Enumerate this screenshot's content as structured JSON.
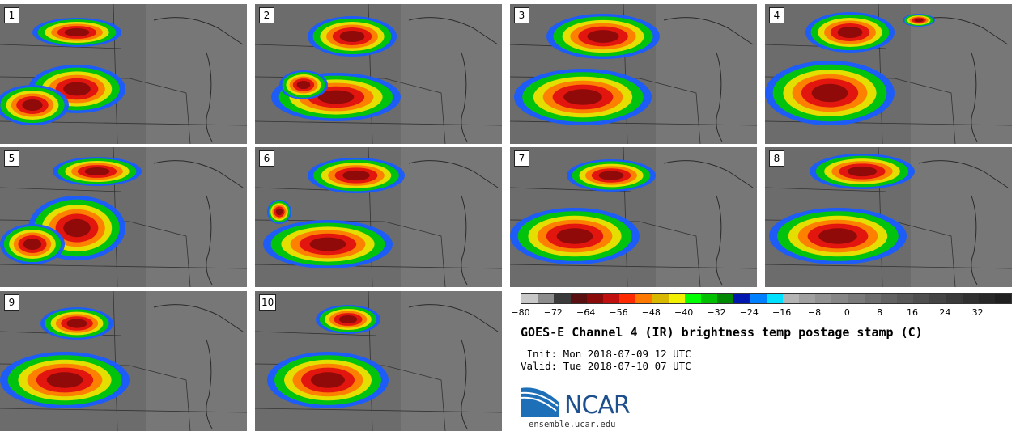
{
  "panels": [
    {
      "label": "1",
      "storms": [
        {
          "cx": 95,
          "cy": 35,
          "rx": 55,
          "ry": 18
        },
        {
          "cx": 95,
          "cy": 105,
          "rx": 60,
          "ry": 30
        },
        {
          "cx": 40,
          "cy": 125,
          "rx": 45,
          "ry": 25
        }
      ]
    },
    {
      "label": "2",
      "storms": [
        {
          "cx": 120,
          "cy": 40,
          "rx": 55,
          "ry": 25
        },
        {
          "cx": 100,
          "cy": 115,
          "rx": 80,
          "ry": 30
        },
        {
          "cx": 60,
          "cy": 100,
          "rx": 30,
          "ry": 18
        }
      ]
    },
    {
      "label": "3",
      "storms": [
        {
          "cx": 115,
          "cy": 40,
          "rx": 70,
          "ry": 28
        },
        {
          "cx": 90,
          "cy": 115,
          "rx": 85,
          "ry": 35
        }
      ]
    },
    {
      "label": "4",
      "storms": [
        {
          "cx": 105,
          "cy": 35,
          "rx": 55,
          "ry": 25
        },
        {
          "cx": 80,
          "cy": 110,
          "rx": 80,
          "ry": 40
        },
        {
          "cx": 190,
          "cy": 20,
          "rx": 20,
          "ry": 8
        }
      ]
    },
    {
      "label": "5",
      "storms": [
        {
          "cx": 120,
          "cy": 30,
          "rx": 55,
          "ry": 18
        },
        {
          "cx": 95,
          "cy": 100,
          "rx": 60,
          "ry": 40
        },
        {
          "cx": 40,
          "cy": 120,
          "rx": 40,
          "ry": 25
        }
      ]
    },
    {
      "label": "6",
      "storms": [
        {
          "cx": 125,
          "cy": 35,
          "rx": 60,
          "ry": 22
        },
        {
          "cx": 90,
          "cy": 120,
          "rx": 80,
          "ry": 30
        },
        {
          "cx": 30,
          "cy": 80,
          "rx": 15,
          "ry": 15
        }
      ]
    },
    {
      "label": "7",
      "storms": [
        {
          "cx": 125,
          "cy": 35,
          "rx": 55,
          "ry": 20
        },
        {
          "cx": 80,
          "cy": 110,
          "rx": 80,
          "ry": 35
        }
      ]
    },
    {
      "label": "8",
      "storms": [
        {
          "cx": 120,
          "cy": 30,
          "rx": 65,
          "ry": 22
        },
        {
          "cx": 90,
          "cy": 110,
          "rx": 85,
          "ry": 35
        }
      ]
    },
    {
      "label": "9",
      "storms": [
        {
          "cx": 95,
          "cy": 40,
          "rx": 45,
          "ry": 20
        },
        {
          "cx": 80,
          "cy": 110,
          "rx": 80,
          "ry": 35
        }
      ]
    },
    {
      "label": "10",
      "storms": [
        {
          "cx": 115,
          "cy": 35,
          "rx": 40,
          "ry": 18
        },
        {
          "cx": 90,
          "cy": 110,
          "rx": 75,
          "ry": 35
        }
      ]
    }
  ],
  "colorbar": {
    "colors": [
      "#c8c8c8",
      "#8c8c8c",
      "#3a3a3a",
      "#5a1010",
      "#8b0a0a",
      "#c01010",
      "#ff2a00",
      "#ff7800",
      "#d8b800",
      "#f0f000",
      "#00ff00",
      "#00c000",
      "#008800",
      "#0018b0",
      "#0080ff",
      "#00e0ff",
      "#b4b4b4",
      "#a0a0a0",
      "#929292",
      "#868686",
      "#7a7a7a",
      "#6e6e6e",
      "#626262",
      "#585858",
      "#4e4e4e",
      "#444444",
      "#3a3a3a",
      "#303030",
      "#282828",
      "#202020"
    ],
    "ticks": [
      "−80",
      "−72",
      "−64",
      "−56",
      "−48",
      "−40",
      "−32",
      "−24",
      "−16",
      "−8",
      "0",
      "8",
      "16",
      "24",
      "32"
    ]
  },
  "title": "GOES-E Channel 4 (IR) brightness temp postage stamp (C)",
  "init": " Init: Mon 2018-07-09 12 UTC",
  "valid": "Valid: Tue 2018-07-10 07 UTC",
  "logo_text": "NCAR",
  "url": "ensemble.ucar.edu"
}
